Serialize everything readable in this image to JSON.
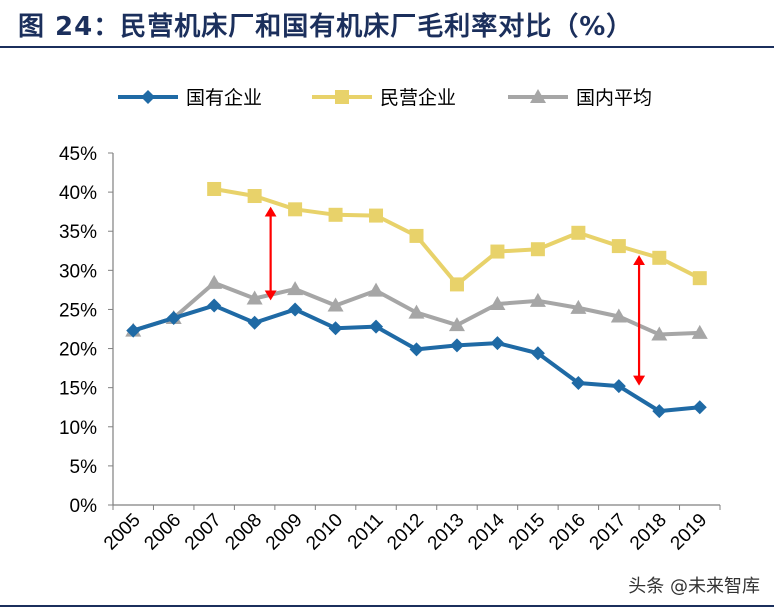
{
  "title": "图 24：民营机床厂和国有机床厂毛利率对比（%）",
  "watermark": "头条 @未来智库",
  "chart_data": {
    "type": "line",
    "title": "民营机床厂和国有机床厂毛利率对比（%）",
    "xlabel": "",
    "ylabel": "",
    "categories": [
      "2005",
      "2006",
      "2007",
      "2008",
      "2009",
      "2010",
      "2011",
      "2012",
      "2013",
      "2014",
      "2015",
      "2016",
      "2017",
      "2018",
      "2019"
    ],
    "y_ticks": [
      "0%",
      "5%",
      "10%",
      "15%",
      "20%",
      "25%",
      "30%",
      "35%",
      "40%",
      "45%"
    ],
    "ylim": [
      0,
      45
    ],
    "grid": false,
    "legend_position": "top",
    "series": [
      {
        "name": "国有企业",
        "color": "#1f6aa5",
        "marker": "diamond",
        "values": [
          22.3,
          23.9,
          25.5,
          23.3,
          25.0,
          22.6,
          22.8,
          19.9,
          20.4,
          20.7,
          19.4,
          15.6,
          15.2,
          12.0,
          12.5
        ]
      },
      {
        "name": "民营企业",
        "color": "#e8d26a",
        "marker": "square",
        "values": [
          null,
          null,
          40.4,
          39.5,
          37.8,
          37.1,
          37.0,
          34.4,
          28.2,
          32.4,
          32.7,
          34.8,
          33.1,
          31.6,
          29.0
        ]
      },
      {
        "name": "国内平均",
        "color": "#a6a6a6",
        "marker": "triangle",
        "values": [
          22.3,
          23.9,
          28.4,
          26.4,
          27.6,
          25.5,
          27.4,
          24.6,
          23.0,
          25.7,
          26.1,
          25.2,
          24.1,
          21.8,
          22.0
        ]
      }
    ],
    "annotations": [
      {
        "type": "double-arrow",
        "color": "#ff0000",
        "x": "2008",
        "y_from": 26.8,
        "y_to": 37.5
      },
      {
        "type": "double-arrow",
        "color": "#ff0000",
        "x": "2017.5",
        "y_from": 15.9,
        "y_to": 31.3
      }
    ]
  }
}
